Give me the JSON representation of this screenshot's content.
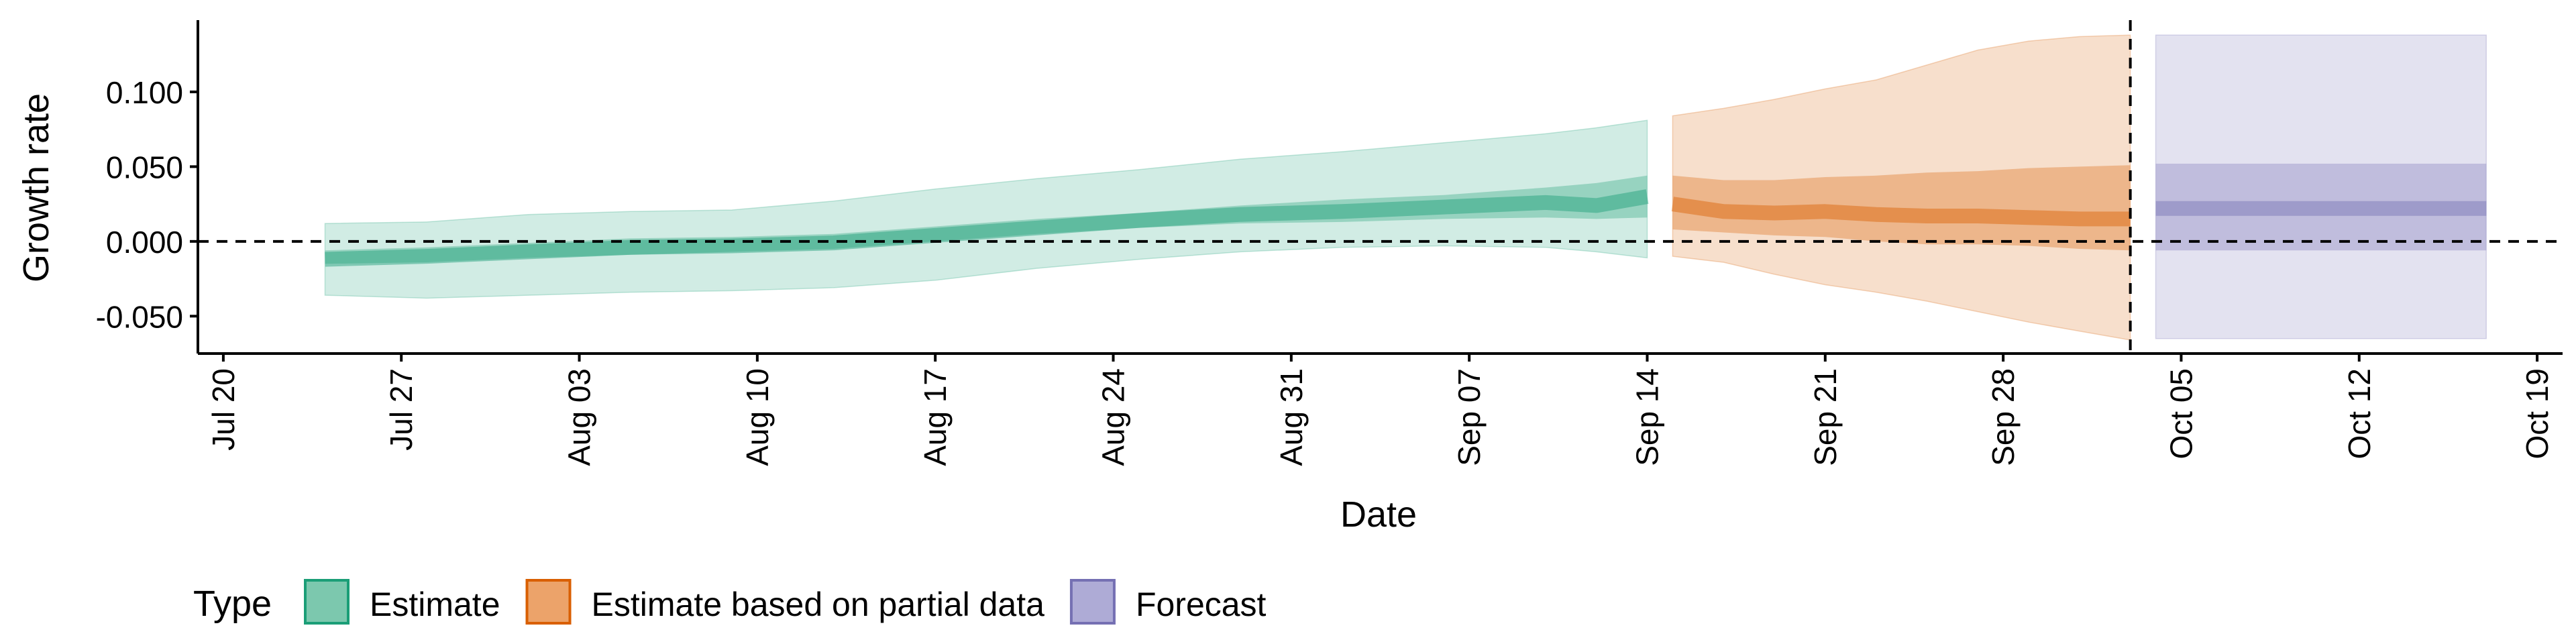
{
  "chart_data": {
    "type": "area",
    "xlabel": "Date",
    "ylabel": "Growth rate",
    "x_range": [
      "2020-07-19",
      "2020-10-20"
    ],
    "ylim": [
      -0.075,
      0.148
    ],
    "x_ticks": [
      "2020-07-20",
      "2020-07-27",
      "2020-08-03",
      "2020-08-10",
      "2020-08-17",
      "2020-08-24",
      "2020-08-31",
      "2020-09-07",
      "2020-09-14",
      "2020-09-21",
      "2020-09-28",
      "2020-10-05",
      "2020-10-12",
      "2020-10-19"
    ],
    "x_tick_labels": [
      "Jul 20",
      "Jul 27",
      "Aug 03",
      "Aug 10",
      "Aug 17",
      "Aug 24",
      "Aug 31",
      "Sep 07",
      "Sep 14",
      "Sep 21",
      "Sep 28",
      "Oct 05",
      "Oct 12",
      "Oct 19"
    ],
    "y_ticks": [
      -0.05,
      0,
      0.05,
      0.1
    ],
    "y_tick_labels": [
      "-0.050",
      "0.000",
      "0.050",
      "0.100"
    ],
    "grid": false,
    "hline": 0,
    "vline_date": "2020-10-03",
    "legend": {
      "title": "Type",
      "position": "bottom-left",
      "entries": [
        {
          "label": "Estimate",
          "color": "#1b9e77",
          "fill": "#7cc8ae"
        },
        {
          "label": "Estimate based on partial data",
          "color": "#d95f02",
          "fill": "#eca36a"
        },
        {
          "label": "Forecast",
          "color": "#7570b3",
          "fill": "#aeabd6"
        }
      ]
    },
    "series": [
      {
        "name": "Estimate",
        "color": "#1b9e77",
        "x": [
          "2020-07-24",
          "2020-07-28",
          "2020-08-01",
          "2020-08-05",
          "2020-08-09",
          "2020-08-13",
          "2020-08-17",
          "2020-08-21",
          "2020-08-25",
          "2020-08-29",
          "2020-09-02",
          "2020-09-06",
          "2020-09-10",
          "2020-09-12",
          "2020-09-14"
        ],
        "median": [
          -0.012,
          -0.01,
          -0.007,
          -0.004,
          -0.003,
          -0.001,
          0.004,
          0.009,
          0.014,
          0.018,
          0.02,
          0.023,
          0.026,
          0.024,
          0.03
        ],
        "inner_lower": [
          -0.015,
          -0.014,
          -0.011,
          -0.009,
          -0.007,
          -0.005,
          0.0,
          0.005,
          0.009,
          0.012,
          0.013,
          0.015,
          0.016,
          0.015,
          0.016
        ],
        "inner_upper": [
          -0.006,
          -0.004,
          -0.001,
          0.002,
          0.003,
          0.005,
          0.01,
          0.015,
          0.019,
          0.024,
          0.028,
          0.031,
          0.036,
          0.039,
          0.044
        ],
        "outer_lower": [
          -0.036,
          -0.038,
          -0.036,
          -0.034,
          -0.033,
          -0.031,
          -0.026,
          -0.018,
          -0.012,
          -0.007,
          -0.004,
          -0.003,
          -0.004,
          -0.007,
          -0.011
        ],
        "outer_upper": [
          0.012,
          0.013,
          0.018,
          0.02,
          0.021,
          0.027,
          0.035,
          0.042,
          0.048,
          0.055,
          0.06,
          0.066,
          0.072,
          0.076,
          0.081
        ]
      },
      {
        "name": "Estimate based on partial data",
        "color": "#d95f02",
        "x": [
          "2020-09-15",
          "2020-09-17",
          "2020-09-19",
          "2020-09-21",
          "2020-09-23",
          "2020-09-25",
          "2020-09-27",
          "2020-09-29",
          "2020-10-01",
          "2020-10-03"
        ],
        "median": [
          0.025,
          0.02,
          0.019,
          0.02,
          0.018,
          0.017,
          0.017,
          0.016,
          0.015,
          0.015
        ],
        "inner_lower": [
          0.008,
          0.006,
          0.004,
          0.003,
          0.0,
          -0.002,
          -0.002,
          -0.003,
          -0.005,
          -0.006
        ],
        "inner_upper": [
          0.044,
          0.041,
          0.041,
          0.043,
          0.044,
          0.046,
          0.047,
          0.049,
          0.05,
          0.051
        ],
        "outer_lower": [
          -0.01,
          -0.014,
          -0.022,
          -0.029,
          -0.034,
          -0.04,
          -0.047,
          -0.054,
          -0.06,
          -0.066
        ],
        "outer_upper": [
          0.084,
          0.089,
          0.095,
          0.102,
          0.108,
          0.118,
          0.128,
          0.134,
          0.137,
          0.138
        ]
      },
      {
        "name": "Forecast",
        "color": "#7570b3",
        "x": [
          "2020-10-04",
          "2020-10-17"
        ],
        "median": [
          0.022,
          0.022
        ],
        "inner_lower": [
          -0.006,
          -0.006
        ],
        "inner_upper": [
          0.052,
          0.052
        ],
        "outer_lower": [
          -0.065,
          -0.065
        ],
        "outer_upper": [
          0.138,
          0.138
        ]
      }
    ]
  }
}
